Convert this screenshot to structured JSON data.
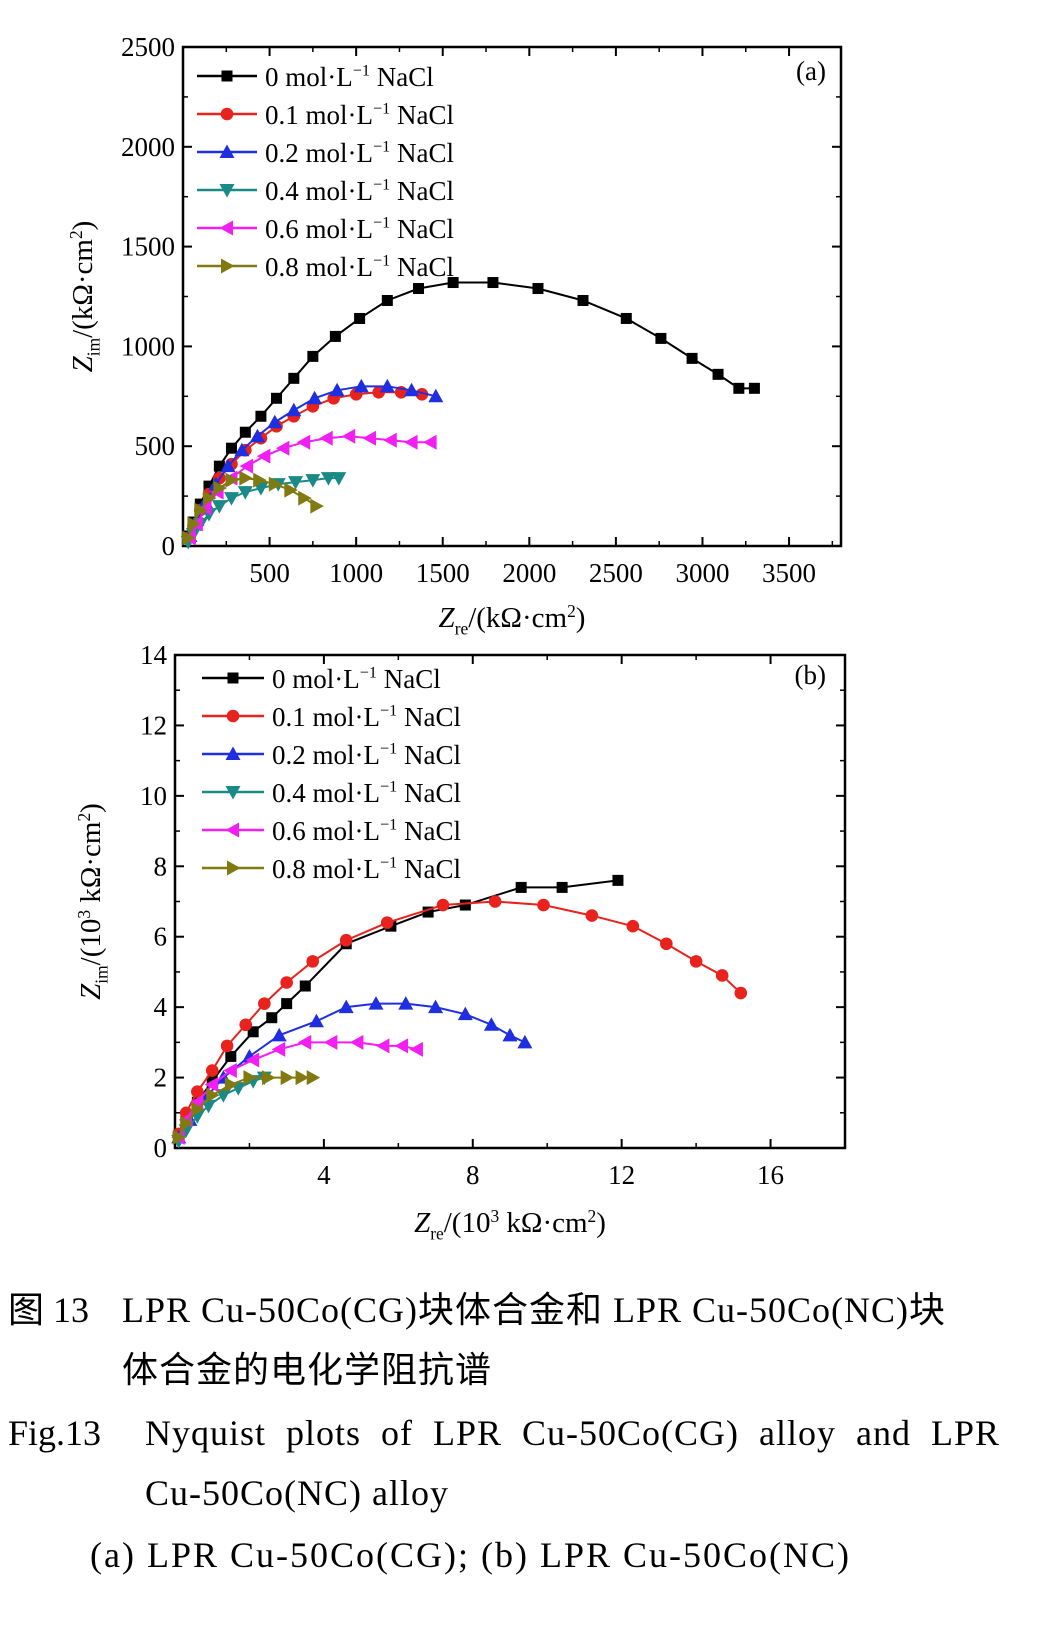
{
  "chart_data": [
    {
      "panel_label": "(a)",
      "type": "line",
      "xlabel": "Zre/(kΩ·cm2)",
      "ylabel": "Zim/(kΩ·cm2)",
      "xlim": [
        0,
        3800
      ],
      "ylim": [
        0,
        2500
      ],
      "xticks": [
        500,
        1000,
        1500,
        2000,
        2500,
        3000,
        3500
      ],
      "yticks": [
        0,
        500,
        1000,
        1500,
        2000,
        2500
      ],
      "legend_position": "top-left",
      "series": [
        {
          "name": "0 mol·L−1 NaCl",
          "color": "#000000",
          "marker": "square",
          "x": [
            30,
            60,
            100,
            150,
            210,
            280,
            360,
            450,
            540,
            640,
            750,
            880,
            1020,
            1180,
            1360,
            1560,
            1790,
            2050,
            2310,
            2560,
            2760,
            2940,
            3090,
            3210,
            3300
          ],
          "y": [
            50,
            120,
            210,
            300,
            400,
            490,
            570,
            650,
            740,
            840,
            950,
            1050,
            1140,
            1230,
            1290,
            1320,
            1320,
            1290,
            1230,
            1140,
            1040,
            940,
            860,
            790,
            790
          ]
        },
        {
          "name": "0.1 mol·L−1 NaCl",
          "color": "#e8221c",
          "marker": "circle",
          "x": [
            30,
            60,
            100,
            150,
            210,
            280,
            360,
            450,
            540,
            640,
            750,
            870,
            1000,
            1130,
            1260,
            1380
          ],
          "y": [
            40,
            100,
            180,
            260,
            340,
            410,
            480,
            540,
            600,
            650,
            700,
            740,
            760,
            770,
            770,
            760
          ]
        },
        {
          "name": "0.2 mol·L−1 NaCl",
          "color": "#1f2fe0",
          "marker": "triangle-up",
          "x": [
            40,
            80,
            130,
            190,
            260,
            340,
            430,
            530,
            640,
            760,
            890,
            1030,
            1180,
            1320,
            1460
          ],
          "y": [
            50,
            130,
            220,
            310,
            400,
            480,
            550,
            620,
            680,
            740,
            780,
            800,
            800,
            780,
            750
          ]
        },
        {
          "name": "0.4 mol·L−1 NaCl",
          "color": "#1a8a87",
          "marker": "triangle-down",
          "x": [
            30,
            60,
            100,
            150,
            210,
            280,
            360,
            450,
            550,
            650,
            750,
            840,
            900
          ],
          "y": [
            20,
            60,
            110,
            160,
            200,
            240,
            270,
            290,
            310,
            320,
            330,
            340,
            340
          ]
        },
        {
          "name": "0.6 mol·L−1 NaCl",
          "color": "#f21ff2",
          "marker": "triangle-left",
          "x": [
            40,
            80,
            130,
            200,
            280,
            370,
            470,
            580,
            700,
            830,
            960,
            1080,
            1200,
            1320,
            1430
          ],
          "y": [
            40,
            110,
            190,
            270,
            340,
            400,
            450,
            490,
            520,
            540,
            550,
            540,
            530,
            520,
            520
          ]
        },
        {
          "name": "0.8 mol·L−1 NaCl",
          "color": "#807a10",
          "marker": "triangle-right",
          "x": [
            30,
            60,
            100,
            150,
            210,
            280,
            360,
            440,
            530,
            620,
            700,
            770
          ],
          "y": [
            40,
            110,
            180,
            240,
            290,
            330,
            340,
            330,
            310,
            280,
            240,
            200
          ]
        }
      ]
    },
    {
      "panel_label": "(b)",
      "type": "line",
      "xlabel": "Zre/(103 kΩ·cm2)",
      "ylabel": "Zim/(103 kΩ·cm2)",
      "xlim": [
        0,
        18
      ],
      "ylim": [
        0,
        14
      ],
      "xticks": [
        4,
        8,
        12,
        16
      ],
      "yticks": [
        0,
        2,
        4,
        6,
        8,
        10,
        12,
        14
      ],
      "legend_position": "top-left",
      "series": [
        {
          "name": "0 mol·L−1 NaCl",
          "color": "#000000",
          "marker": "square",
          "x": [
            0.1,
            0.3,
            0.6,
            1.0,
            1.5,
            2.1,
            2.6,
            3.0,
            3.5,
            4.6,
            5.8,
            6.8,
            7.8,
            9.3,
            10.4,
            11.9
          ],
          "y": [
            0.3,
            0.8,
            1.3,
            1.9,
            2.6,
            3.3,
            3.7,
            4.1,
            4.6,
            5.8,
            6.3,
            6.7,
            6.9,
            7.4,
            7.4,
            7.6
          ]
        },
        {
          "name": "0.1 mol·L−1 NaCl",
          "color": "#e8221c",
          "marker": "circle",
          "x": [
            0.1,
            0.3,
            0.6,
            1.0,
            1.4,
            1.9,
            2.4,
            3.0,
            3.7,
            4.6,
            5.7,
            7.2,
            8.6,
            9.9,
            11.2,
            12.3,
            13.2,
            14.0,
            14.7,
            15.2
          ],
          "y": [
            0.4,
            1.0,
            1.6,
            2.2,
            2.9,
            3.5,
            4.1,
            4.7,
            5.3,
            5.9,
            6.4,
            6.9,
            7.0,
            6.9,
            6.6,
            6.3,
            5.8,
            5.3,
            4.9,
            4.4
          ]
        },
        {
          "name": "0.2 mol·L−1 NaCl",
          "color": "#1f2fe0",
          "marker": "triangle-up",
          "x": [
            0.1,
            0.4,
            0.8,
            1.3,
            2.0,
            2.8,
            3.8,
            4.6,
            5.4,
            6.2,
            7.0,
            7.8,
            8.5,
            9.0,
            9.4
          ],
          "y": [
            0.3,
            0.8,
            1.4,
            2.0,
            2.6,
            3.2,
            3.6,
            4.0,
            4.1,
            4.1,
            4.0,
            3.8,
            3.5,
            3.2,
            3.0
          ]
        },
        {
          "name": "0.4 mol·L−1 NaCl",
          "color": "#1a8a87",
          "marker": "triangle-down",
          "x": [
            0.1,
            0.3,
            0.6,
            0.9,
            1.3,
            1.7,
            2.1,
            2.4
          ],
          "y": [
            0.2,
            0.5,
            0.9,
            1.2,
            1.5,
            1.7,
            1.9,
            2.0
          ]
        },
        {
          "name": "0.6 mol·L−1 NaCl",
          "color": "#f21ff2",
          "marker": "triangle-left",
          "x": [
            0.1,
            0.3,
            0.6,
            1.0,
            1.5,
            2.1,
            2.8,
            3.5,
            4.2,
            4.9,
            5.6,
            6.1,
            6.5
          ],
          "y": [
            0.3,
            0.8,
            1.3,
            1.8,
            2.2,
            2.5,
            2.8,
            3.0,
            3.0,
            3.0,
            2.9,
            2.9,
            2.8
          ]
        },
        {
          "name": "0.8 mol·L−1 NaCl",
          "color": "#807a10",
          "marker": "triangle-right",
          "x": [
            0.1,
            0.3,
            0.6,
            1.0,
            1.5,
            2.0,
            2.5,
            3.0,
            3.4,
            3.7
          ],
          "y": [
            0.3,
            0.7,
            1.1,
            1.5,
            1.8,
            2.0,
            2.0,
            2.0,
            2.0,
            2.0
          ]
        }
      ]
    }
  ],
  "caption": {
    "cn_number": "图 13",
    "cn_line1": "LPR Cu-50Co(CG)块体合金和 LPR Cu-50Co(NC)块",
    "cn_line2": "体合金的电化学阻抗谱",
    "en_number": "Fig.13",
    "en_line1": "Nyquist plots of LPR Cu-50Co(CG) alloy and LPR",
    "en_line2": "Cu-50Co(NC) alloy",
    "sub": "(a) LPR Cu-50Co(CG); (b) LPR Cu-50Co(NC)"
  }
}
